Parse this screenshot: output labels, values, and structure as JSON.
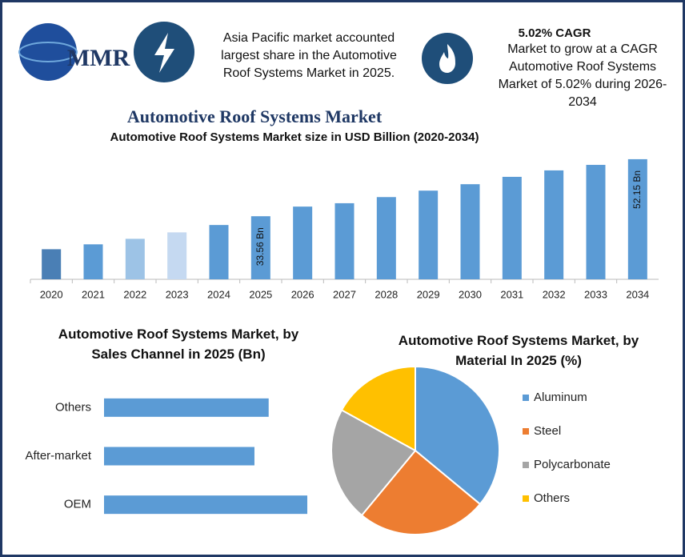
{
  "header": {
    "logo": "MMR",
    "info": "Asia Pacific market accounted largest share in the Automotive Roof Systems Market in 2025.",
    "cagr_title": "5.02% CAGR",
    "cagr_text": "Market to grow at a CAGR Automotive Roof Systems Market of 5.02% during 2026-2034"
  },
  "chart_data": [
    {
      "type": "bar",
      "title": "Automotive Roof Systems Market",
      "subtitle": "Automotive Roof Systems Market size in USD Billion (2020-2034)",
      "categories": [
        "2020",
        "2021",
        "2022",
        "2023",
        "2024",
        "2025",
        "2026",
        "2027",
        "2028",
        "2029",
        "2030",
        "2031",
        "2032",
        "2033",
        "2034"
      ],
      "values": [
        22.8,
        24.4,
        26.2,
        28.3,
        30.7,
        33.56,
        36.7,
        37.8,
        39.8,
        41.9,
        44.0,
        46.4,
        48.5,
        50.3,
        52.15
      ],
      "value_labels": [
        null,
        null,
        null,
        null,
        null,
        "33.56 Bn",
        null,
        null,
        null,
        null,
        null,
        null,
        null,
        null,
        "52.15 Bn"
      ],
      "colors": [
        "#4a7fb5",
        "#5b9bd5",
        "#9dc3e6",
        "#c5d9f1",
        "#5b9bd5",
        "#5b9bd5",
        "#5b9bd5",
        "#5b9bd5",
        "#5b9bd5",
        "#5b9bd5",
        "#5b9bd5",
        "#5b9bd5",
        "#5b9bd5",
        "#5b9bd5",
        "#5b9bd5"
      ],
      "ylim": [
        13,
        55
      ]
    },
    {
      "type": "bar",
      "horizontal": true,
      "title": "Automotive Roof Systems Market, by Sales Channel in 2025 (Bn)",
      "categories": [
        "Others",
        "After-market",
        "OEM"
      ],
      "values": [
        8.1,
        7.4,
        10.0
      ],
      "color": "#5b9bd5",
      "xlim": [
        0,
        10
      ]
    },
    {
      "type": "pie",
      "title": "Automotive Roof Systems Market, by Material In 2025 (%)",
      "categories": [
        "Aluminum",
        "Steel",
        "Polycarbonate",
        "Others"
      ],
      "values": [
        36,
        25,
        22,
        17
      ],
      "colors": [
        "#5b9bd5",
        "#ed7d31",
        "#a5a5a5",
        "#ffc000"
      ]
    }
  ]
}
